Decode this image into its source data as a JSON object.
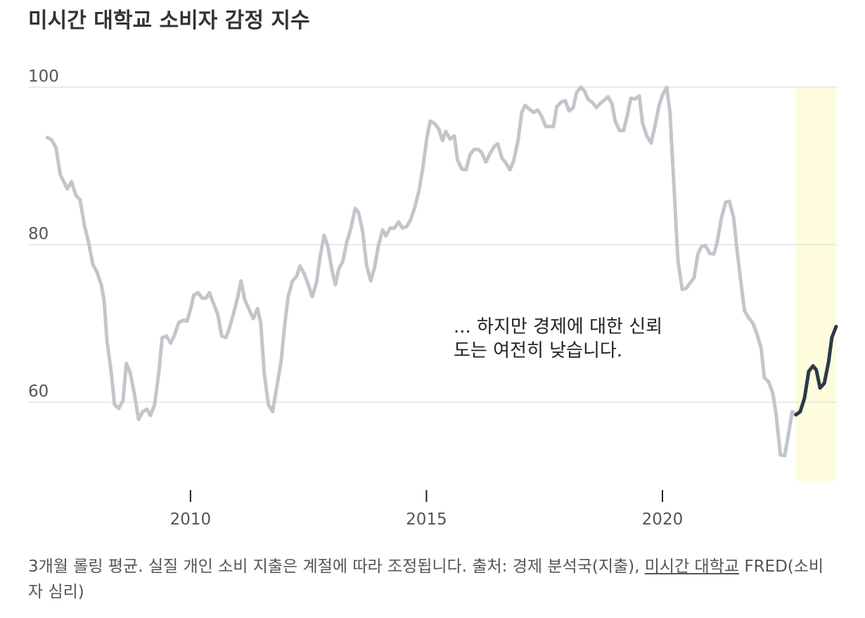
{
  "chart_data": {
    "type": "line",
    "title": "미시간 대학교 소비자 감정 지수",
    "annotation": "... 하지만 경제에 대한 신뢰도는 여전히 낮습니다.",
    "note": "3개월 롤링 평균. 실질 개인 소비 지출은 계절에 따라 조정됩니다. 출처: 경제 분석국(지출),",
    "source_link": "미시간 대학교",
    "source_rest": "FRED(소비자 심리)",
    "xlim": [
      2006.5,
      2023.75
    ],
    "ylim": [
      50,
      100
    ],
    "xticks": [
      2010,
      2015,
      2020
    ],
    "yticks": [
      60,
      80,
      100
    ],
    "grid": true,
    "highlight": {
      "x": [
        2022.83,
        2023.68
      ],
      "color": "#fefcdc"
    },
    "series": [
      {
        "color": "#c2c6cb",
        "x": [
          2006.97,
          2007.06,
          2007.15,
          2007.24,
          2007.39,
          2007.48,
          2007.57,
          2007.66,
          2007.75,
          2007.84,
          2007.93,
          2008.02,
          2008.11,
          2008.17,
          2008.23,
          2008.32,
          2008.39,
          2008.48,
          2008.57,
          2008.64,
          2008.72,
          2008.81,
          2008.9,
          2008.99,
          2009.08,
          2009.15,
          2009.24,
          2009.33,
          2009.4,
          2009.49,
          2009.58,
          2009.66,
          2009.75,
          2009.84,
          2009.93,
          2010.0,
          2010.07,
          2010.16,
          2010.25,
          2010.33,
          2010.4,
          2010.49,
          2010.58,
          2010.66,
          2010.75,
          2010.82,
          2010.91,
          2011.0,
          2011.07,
          2011.15,
          2011.24,
          2011.33,
          2011.42,
          2011.49,
          2011.56,
          2011.65,
          2011.74,
          2011.83,
          2011.92,
          2012.0,
          2012.07,
          2012.16,
          2012.25,
          2012.32,
          2012.41,
          2012.49,
          2012.58,
          2012.67,
          2012.74,
          2012.83,
          2012.91,
          2013.0,
          2013.07,
          2013.14,
          2013.23,
          2013.31,
          2013.4,
          2013.49,
          2013.56,
          2013.65,
          2013.73,
          2013.82,
          2013.9,
          2013.98,
          2014.07,
          2014.14,
          2014.23,
          2014.32,
          2014.41,
          2014.49,
          2014.58,
          2014.66,
          2014.75,
          2014.84,
          2014.92,
          2015.01,
          2015.08,
          2015.17,
          2015.26,
          2015.34,
          2015.41,
          2015.5,
          2015.59,
          2015.66,
          2015.75,
          2015.84,
          2015.92,
          2016.01,
          2016.1,
          2016.17,
          2016.26,
          2016.35,
          2016.44,
          2016.51,
          2016.6,
          2016.68,
          2016.77,
          2016.85,
          2016.94,
          2017.02,
          2017.09,
          2017.18,
          2017.27,
          2017.36,
          2017.44,
          2017.53,
          2017.62,
          2017.69,
          2017.76,
          2017.85,
          2017.94,
          2018.02,
          2018.11,
          2018.18,
          2018.27,
          2018.35,
          2018.43,
          2018.51,
          2018.6,
          2018.69,
          2018.76,
          2018.85,
          2018.93,
          2019.0,
          2019.09,
          2019.18,
          2019.25,
          2019.33,
          2019.42,
          2019.51,
          2019.58,
          2019.67,
          2019.76,
          2019.84,
          2019.93,
          2020.0,
          2020.09,
          2020.16,
          2020.24,
          2020.33,
          2020.42,
          2020.51,
          2020.58,
          2020.67,
          2020.75,
          2020.83,
          2020.91,
          2021.0,
          2021.09,
          2021.16,
          2021.25,
          2021.34,
          2021.42,
          2021.51,
          2021.58,
          2021.67,
          2021.74,
          2021.83,
          2021.92,
          2022.0,
          2022.09,
          2022.16,
          2022.25,
          2022.34,
          2022.41,
          2022.5,
          2022.59,
          2022.67,
          2022.75,
          2022.82
        ],
        "values": [
          93.6,
          93.3,
          92.3,
          88.9,
          87.1,
          88.0,
          86.3,
          85.7,
          82.5,
          80.3,
          77.5,
          76.5,
          74.9,
          72.9,
          67.8,
          63.8,
          59.7,
          59.2,
          60.2,
          64.9,
          63.8,
          61.1,
          57.8,
          58.8,
          59.1,
          58.3,
          59.7,
          63.8,
          68.2,
          68.4,
          67.5,
          68.5,
          70.1,
          70.4,
          70.3,
          71.8,
          73.6,
          73.9,
          73.2,
          73.2,
          73.9,
          72.5,
          71.1,
          68.4,
          68.2,
          69.3,
          71.2,
          73.3,
          75.4,
          73.0,
          71.8,
          70.6,
          71.9,
          70.0,
          63.8,
          59.7,
          58.8,
          62.0,
          65.2,
          70.0,
          73.4,
          75.4,
          76.0,
          77.3,
          76.3,
          75.0,
          73.4,
          75.2,
          78.2,
          81.2,
          79.8,
          76.7,
          74.9,
          76.9,
          77.9,
          80.3,
          82.1,
          84.6,
          84.1,
          81.6,
          77.4,
          75.4,
          77.1,
          79.8,
          81.9,
          81.1,
          82.1,
          82.1,
          82.9,
          82.1,
          82.3,
          83.1,
          84.7,
          86.8,
          89.6,
          93.6,
          95.7,
          95.4,
          94.7,
          93.2,
          94.4,
          93.4,
          93.8,
          90.7,
          89.6,
          89.5,
          91.4,
          92.1,
          92.1,
          91.7,
          90.5,
          91.6,
          92.5,
          92.8,
          91.0,
          90.4,
          89.5,
          90.7,
          93.2,
          96.8,
          97.7,
          97.2,
          96.8,
          97.1,
          96.3,
          95.0,
          95.0,
          95.0,
          97.5,
          98.1,
          98.3,
          97.0,
          97.4,
          99.3,
          100.0,
          99.5,
          98.4,
          98.1,
          97.4,
          98.0,
          98.3,
          98.8,
          97.9,
          95.7,
          94.5,
          94.5,
          96.3,
          98.6,
          98.5,
          98.9,
          95.4,
          93.8,
          92.9,
          95.0,
          97.7,
          99.0,
          100.0,
          96.8,
          87.9,
          77.9,
          74.3,
          74.5,
          75.1,
          75.8,
          78.8,
          79.8,
          79.9,
          78.9,
          78.8,
          80.3,
          83.4,
          85.4,
          85.5,
          83.4,
          79.4,
          74.9,
          71.6,
          70.7,
          70.0,
          68.7,
          66.9,
          63.1,
          62.6,
          61.1,
          58.4,
          53.3,
          53.2,
          55.9,
          58.8,
          58.4
        ]
      },
      {
        "color": "#2b3a47",
        "x": [
          2022.83,
          2022.92,
          2023.01,
          2023.1,
          2023.19,
          2023.26,
          2023.34,
          2023.43,
          2023.52,
          2023.59,
          2023.68
        ],
        "values": [
          58.4,
          58.8,
          60.5,
          63.9,
          64.6,
          64.1,
          61.8,
          62.4,
          65.1,
          68.2,
          69.6
        ]
      }
    ]
  }
}
